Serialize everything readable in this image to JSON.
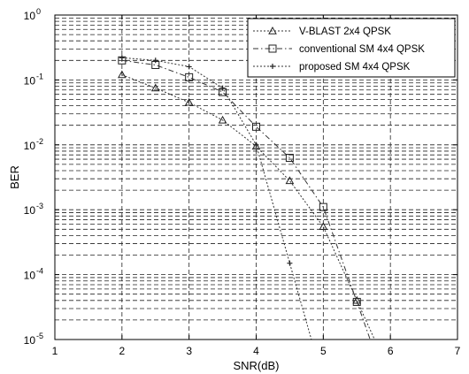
{
  "chart_data": {
    "type": "line",
    "xlabel": "SNR(dB)",
    "ylabel": "BER",
    "xlim": [
      1,
      7
    ],
    "ylim": [
      1e-05,
      1
    ],
    "yscale": "log",
    "grid": true,
    "legend_position": "top-right",
    "x_ticks": [
      "1",
      "2",
      "3",
      "4",
      "5",
      "6",
      "7"
    ],
    "y_ticks": [
      {
        "base": "10",
        "exp": "0"
      },
      {
        "base": "10",
        "exp": "-1"
      },
      {
        "base": "10",
        "exp": "-2"
      },
      {
        "base": "10",
        "exp": "-3"
      },
      {
        "base": "10",
        "exp": "-4"
      },
      {
        "base": "10",
        "exp": "-5"
      }
    ],
    "series": [
      {
        "name": "V-BLAST 2x4 QPSK",
        "marker": "triangle",
        "line": "dotted",
        "x": [
          2,
          2.5,
          3,
          3.5,
          4,
          4.5,
          5,
          5.5
        ],
        "y": [
          0.12,
          0.075,
          0.045,
          0.024,
          0.0095,
          0.0028,
          0.00055,
          4e-05
        ]
      },
      {
        "name": "conventional SM 4x4 QPSK",
        "marker": "square",
        "line": "dash-dot",
        "x": [
          2,
          2.5,
          3,
          3.5,
          4,
          4.5,
          5,
          5.5
        ],
        "y": [
          0.2,
          0.17,
          0.11,
          0.065,
          0.019,
          0.0063,
          0.0011,
          3.8e-05
        ]
      },
      {
        "name": "proposed SM 4x4 QPSK",
        "marker": "plus",
        "line": "dotted",
        "x": [
          2,
          2.5,
          3,
          3.5,
          4,
          4.5
        ],
        "y": [
          0.22,
          0.2,
          0.16,
          0.075,
          0.01,
          0.00015
        ]
      }
    ]
  }
}
